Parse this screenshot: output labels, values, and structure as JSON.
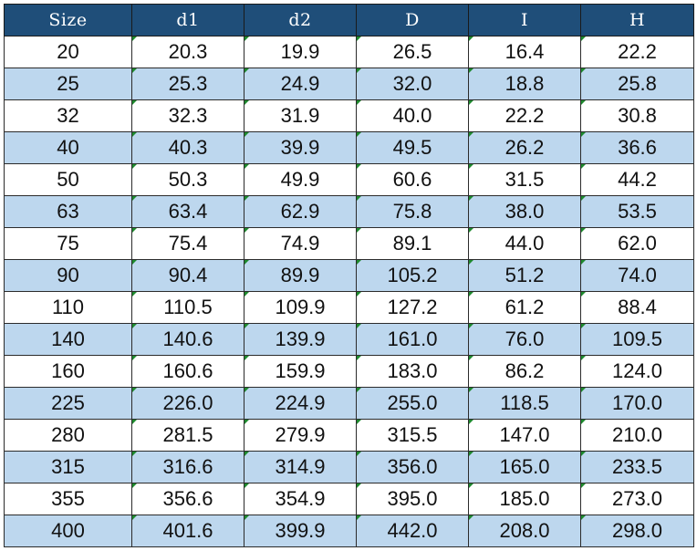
{
  "table": {
    "headers": [
      "Size",
      "d1",
      "d2",
      "D",
      "I",
      "H"
    ],
    "rows": [
      [
        "20",
        "20.3",
        "19.9",
        "26.5",
        "16.4",
        "22.2"
      ],
      [
        "25",
        "25.3",
        "24.9",
        "32.0",
        "18.8",
        "25.8"
      ],
      [
        "32",
        "32.3",
        "31.9",
        "40.0",
        "22.2",
        "30.8"
      ],
      [
        "40",
        "40.3",
        "39.9",
        "49.5",
        "26.2",
        "36.6"
      ],
      [
        "50",
        "50.3",
        "49.9",
        "60.6",
        "31.5",
        "44.2"
      ],
      [
        "63",
        "63.4",
        "62.9",
        "75.8",
        "38.0",
        "53.5"
      ],
      [
        "75",
        "75.4",
        "74.9",
        "89.1",
        "44.0",
        "62.0"
      ],
      [
        "90",
        "90.4",
        "89.9",
        "105.2",
        "51.2",
        "74.0"
      ],
      [
        "110",
        "110.5",
        "109.9",
        "127.2",
        "61.2",
        "88.4"
      ],
      [
        "140",
        "140.6",
        "139.9",
        "161.0",
        "76.0",
        "109.5"
      ],
      [
        "160",
        "160.6",
        "159.9",
        "183.0",
        "86.2",
        "124.0"
      ],
      [
        "225",
        "226.0",
        "224.9",
        "255.0",
        "118.5",
        "170.0"
      ],
      [
        "280",
        "281.5",
        "279.9",
        "315.5",
        "147.0",
        "210.0"
      ],
      [
        "315",
        "316.6",
        "314.9",
        "356.0",
        "165.0",
        "233.5"
      ],
      [
        "355",
        "356.6",
        "354.9",
        "395.0",
        "185.0",
        "273.0"
      ],
      [
        "400",
        "401.6",
        "399.9",
        "442.0",
        "208.0",
        "298.0"
      ]
    ]
  },
  "colors": {
    "header_bg": "#1f4e79",
    "header_text": "#ffffff",
    "band_row_bg": "#bdd7ee",
    "plain_row_bg": "#ffffff",
    "corner_marker": "#1e8a2e"
  }
}
